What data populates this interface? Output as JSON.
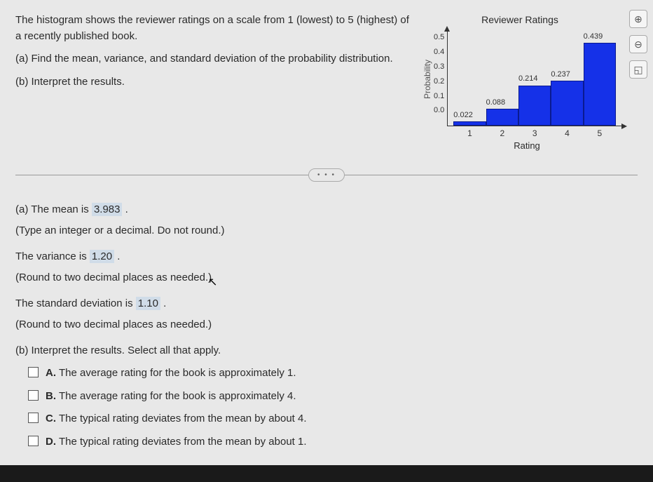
{
  "problem": {
    "intro": "The histogram shows the reviewer ratings on a scale from 1 (lowest) to 5 (highest) of a recently published book.",
    "partA": "(a) Find the mean, variance, and standard deviation of the probability distribution.",
    "partB": "(b) Interpret the results."
  },
  "chart": {
    "title": "Reviewer Ratings",
    "ylabel": "Probability",
    "xlabel": "Rating",
    "type": "histogram",
    "ylim": [
      0.0,
      0.5
    ],
    "yticks": [
      "0.5",
      "0.4",
      "0.3",
      "0.2",
      "0.1",
      "0.0"
    ],
    "categories": [
      "1",
      "2",
      "3",
      "4",
      "5"
    ],
    "values": [
      0.022,
      0.088,
      0.214,
      0.237,
      0.439
    ],
    "value_labels": [
      "0.022",
      "0.088",
      "0.214",
      "0.237",
      "0.439"
    ],
    "bar_color": "#1531e8",
    "bar_border_color": "#0a1a90",
    "axis_color": "#333333",
    "background_color": "#e8e8e8",
    "title_fontsize": 14,
    "label_fontsize": 12,
    "tick_fontsize": 11
  },
  "answers": {
    "meanSentence1": "(a) The mean is ",
    "meanValue": "3.983",
    "period": " .",
    "meanHint": "(Type an integer or a decimal. Do not round.)",
    "varSentence": "The variance is ",
    "varValue": "1.20",
    "varHint": "(Round to two decimal places as needed.)",
    "sdSentence": "The standard deviation is ",
    "sdValue": "1.10",
    "sdHint": "(Round to two decimal places as needed.)",
    "interpretPrompt": "(b) Interpret the results. Select all that apply."
  },
  "choices": {
    "a": {
      "letter": "A.",
      "text": "The average rating for the book is approximately 1."
    },
    "b": {
      "letter": "B.",
      "text": "The average rating for the book is approximately 4."
    },
    "c": {
      "letter": "C.",
      "text": "The typical rating deviates from the mean by about 4."
    },
    "d": {
      "letter": "D.",
      "text": "The typical rating deviates from the mean by about 1."
    }
  },
  "icons": {
    "zoomIn": "⊕",
    "zoomOut": "⊖",
    "popout": "◱",
    "ellipsis": "• • •"
  }
}
